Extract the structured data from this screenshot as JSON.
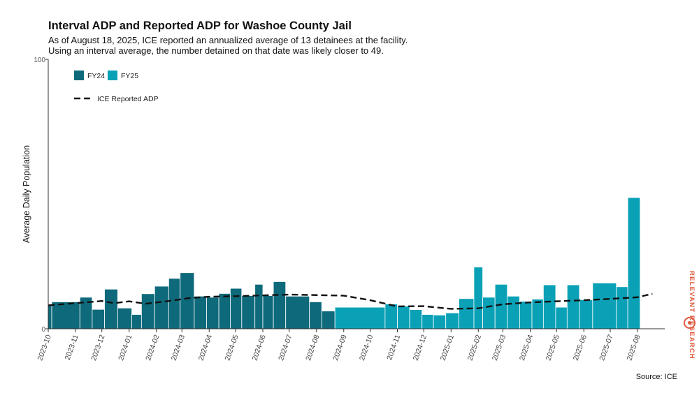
{
  "header": {
    "title": "Interval ADP and Reported ADP for Washoe County Jail",
    "subtitle_line1": "As of August 18, 2025, ICE reported an annualized average of 13 detainees at the facility.",
    "subtitle_line2": "Using an interval average, the number detained on that date was likely closer to 49."
  },
  "footer": {
    "source": "Source: ICE"
  },
  "logo": {
    "text": "RELEVANT RESEARCH"
  },
  "colors": {
    "fy24": "#0e6a7b",
    "fy25": "#0aa1b7",
    "reported": "#111111",
    "axis": "#333333"
  },
  "chart_data": {
    "type": "bar",
    "title": "Interval ADP and Reported ADP for Washoe County Jail",
    "xlabel": "",
    "ylabel": "Average Daily Population",
    "ylim": [
      0,
      100
    ],
    "xlim": [
      "2023-10-01",
      "2025-08-31"
    ],
    "yticks": [
      "0",
      "100"
    ],
    "xticks": [
      {
        "date": "2023-10-01",
        "label": "2023-10"
      },
      {
        "date": "2023-11-01",
        "label": "2023-11"
      },
      {
        "date": "2023-12-01",
        "label": "2023-12"
      },
      {
        "date": "2024-01-01",
        "label": "2024-01"
      },
      {
        "date": "2024-02-01",
        "label": "2024-02"
      },
      {
        "date": "2024-03-01",
        "label": "2024-03"
      },
      {
        "date": "2024-04-01",
        "label": "2024-04"
      },
      {
        "date": "2024-05-01",
        "label": "2024-05"
      },
      {
        "date": "2024-06-01",
        "label": "2024-06"
      },
      {
        "date": "2024-07-01",
        "label": "2024-07"
      },
      {
        "date": "2024-08-01",
        "label": "2024-08"
      },
      {
        "date": "2024-09-01",
        "label": "2024-09"
      },
      {
        "date": "2024-10-01",
        "label": "2024-10"
      },
      {
        "date": "2024-11-01",
        "label": "2024-11"
      },
      {
        "date": "2024-12-01",
        "label": "2024-12"
      },
      {
        "date": "2025-01-01",
        "label": "2025-01"
      },
      {
        "date": "2025-02-01",
        "label": "2025-02"
      },
      {
        "date": "2025-03-01",
        "label": "2025-03"
      },
      {
        "date": "2025-04-01",
        "label": "2025-04"
      },
      {
        "date": "2025-05-01",
        "label": "2025-05"
      },
      {
        "date": "2025-06-01",
        "label": "2025-06"
      },
      {
        "date": "2025-07-01",
        "label": "2025-07"
      },
      {
        "date": "2025-08-01",
        "label": "2025-08"
      }
    ],
    "legend": [
      {
        "label": "FY24",
        "kind": "box",
        "series": "fy24"
      },
      {
        "label": "FY25",
        "kind": "box",
        "series": "fy25"
      },
      {
        "label": "ICE Reported ADP",
        "kind": "dash",
        "series": "reported"
      }
    ],
    "legend_position": "top-left",
    "series": [
      {
        "name": "FY24",
        "fiscal_year": "fy24",
        "bars": [
          {
            "start": "2023-10-01",
            "end": "2023-10-05",
            "value": 9
          },
          {
            "start": "2023-10-05",
            "end": "2023-11-06",
            "value": 10
          },
          {
            "start": "2023-11-06",
            "end": "2023-11-20",
            "value": 11.7
          },
          {
            "start": "2023-11-20",
            "end": "2023-12-04",
            "value": 7.2
          },
          {
            "start": "2023-12-04",
            "end": "2023-12-19",
            "value": 14.7
          },
          {
            "start": "2023-12-19",
            "end": "2024-01-04",
            "value": 7.7
          },
          {
            "start": "2024-01-04",
            "end": "2024-01-15",
            "value": 5.3
          },
          {
            "start": "2024-01-15",
            "end": "2024-01-30",
            "value": 13
          },
          {
            "start": "2024-01-30",
            "end": "2024-02-15",
            "value": 15.8
          },
          {
            "start": "2024-02-15",
            "end": "2024-02-28",
            "value": 18.7
          },
          {
            "start": "2024-02-28",
            "end": "2024-03-15",
            "value": 20.8
          },
          {
            "start": "2024-03-15",
            "end": "2024-03-29",
            "value": 12.1
          },
          {
            "start": "2024-03-29",
            "end": "2024-04-12",
            "value": 11.7
          },
          {
            "start": "2024-04-12",
            "end": "2024-04-25",
            "value": 13.1
          },
          {
            "start": "2024-04-25",
            "end": "2024-05-08",
            "value": 15
          },
          {
            "start": "2024-05-08",
            "end": "2024-05-23",
            "value": 12.3
          },
          {
            "start": "2024-05-23",
            "end": "2024-06-01",
            "value": 16.5
          },
          {
            "start": "2024-06-01",
            "end": "2024-06-13",
            "value": 12.3
          },
          {
            "start": "2024-06-13",
            "end": "2024-06-27",
            "value": 17.5
          },
          {
            "start": "2024-06-27",
            "end": "2024-07-24",
            "value": 12.1
          },
          {
            "start": "2024-07-24",
            "end": "2024-08-07",
            "value": 10
          },
          {
            "start": "2024-08-07",
            "end": "2024-08-22",
            "value": 6.6
          }
        ]
      },
      {
        "name": "FY25",
        "fiscal_year": "fy25",
        "bars": [
          {
            "start": "2024-08-22",
            "end": "2024-10-18",
            "value": 8
          },
          {
            "start": "2024-10-18",
            "end": "2024-11-01",
            "value": 9.2
          },
          {
            "start": "2024-11-01",
            "end": "2024-11-15",
            "value": 8.4
          },
          {
            "start": "2024-11-15",
            "end": "2024-11-29",
            "value": 7.1
          },
          {
            "start": "2024-11-29",
            "end": "2024-12-12",
            "value": 5.3
          },
          {
            "start": "2024-12-12",
            "end": "2024-12-26",
            "value": 5.1
          },
          {
            "start": "2024-12-26",
            "end": "2025-01-10",
            "value": 5.9
          },
          {
            "start": "2025-01-10",
            "end": "2025-01-27",
            "value": 11.2
          },
          {
            "start": "2025-01-27",
            "end": "2025-02-06",
            "value": 22.9
          },
          {
            "start": "2025-02-06",
            "end": "2025-02-20",
            "value": 11.7
          },
          {
            "start": "2025-02-20",
            "end": "2025-03-06",
            "value": 16.5
          },
          {
            "start": "2025-03-06",
            "end": "2025-03-20",
            "value": 12.1
          },
          {
            "start": "2025-03-20",
            "end": "2025-04-03",
            "value": 10.2
          },
          {
            "start": "2025-04-03",
            "end": "2025-04-16",
            "value": 11
          },
          {
            "start": "2025-04-16",
            "end": "2025-04-30",
            "value": 16.3
          },
          {
            "start": "2025-04-30",
            "end": "2025-05-13",
            "value": 8
          },
          {
            "start": "2025-05-13",
            "end": "2025-05-27",
            "value": 16.3
          },
          {
            "start": "2025-05-27",
            "end": "2025-06-11",
            "value": 10.8
          },
          {
            "start": "2025-06-11",
            "end": "2025-07-08",
            "value": 17
          },
          {
            "start": "2025-07-08",
            "end": "2025-07-21",
            "value": 15.6
          },
          {
            "start": "2025-07-21",
            "end": "2025-08-04",
            "value": 48.7
          }
        ]
      },
      {
        "name": "ICE Reported ADP",
        "fiscal_year": "reported",
        "points": [
          {
            "date": "2023-10-01",
            "value": 8.7
          },
          {
            "date": "2023-11-01",
            "value": 9.5
          },
          {
            "date": "2023-12-01",
            "value": 10.3
          },
          {
            "date": "2023-12-15",
            "value": 9.5
          },
          {
            "date": "2024-01-01",
            "value": 10.2
          },
          {
            "date": "2024-01-20",
            "value": 9.3
          },
          {
            "date": "2024-02-15",
            "value": 10.3
          },
          {
            "date": "2024-03-10",
            "value": 11.4
          },
          {
            "date": "2024-04-01",
            "value": 11.9
          },
          {
            "date": "2024-05-01",
            "value": 12.1
          },
          {
            "date": "2024-06-01",
            "value": 12.4
          },
          {
            "date": "2024-07-01",
            "value": 12.7
          },
          {
            "date": "2024-08-01",
            "value": 12.5
          },
          {
            "date": "2024-09-01",
            "value": 12.3
          },
          {
            "date": "2024-10-01",
            "value": 10.6
          },
          {
            "date": "2024-11-01",
            "value": 8.3
          },
          {
            "date": "2024-12-01",
            "value": 8.4
          },
          {
            "date": "2025-01-01",
            "value": 7.4
          },
          {
            "date": "2025-02-01",
            "value": 7.6
          },
          {
            "date": "2025-03-01",
            "value": 9.1
          },
          {
            "date": "2025-04-01",
            "value": 9.8
          },
          {
            "date": "2025-05-01",
            "value": 10.2
          },
          {
            "date": "2025-06-01",
            "value": 10.6
          },
          {
            "date": "2025-07-01",
            "value": 11.1
          },
          {
            "date": "2025-08-01",
            "value": 11.7
          },
          {
            "date": "2025-08-18",
            "value": 13
          }
        ]
      }
    ]
  }
}
